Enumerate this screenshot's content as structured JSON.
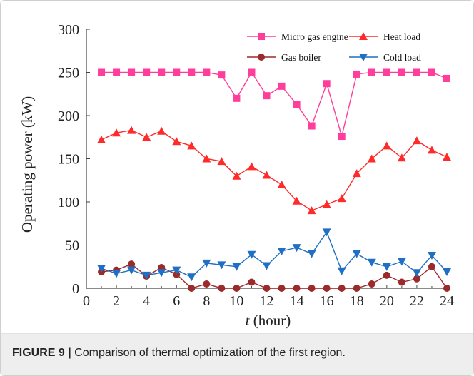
{
  "chart_data": {
    "type": "line",
    "title": "",
    "xlabel_italic": "t",
    "xlabel_rest": " (hour)",
    "ylabel": "Operating power  (kW)",
    "xlim": [
      0,
      24
    ],
    "ylim": [
      0,
      300
    ],
    "xticks": [
      "0",
      "2",
      "4",
      "6",
      "8",
      "10",
      "12",
      "14",
      "16",
      "18",
      "20",
      "22",
      "24"
    ],
    "yticks": [
      "0",
      "50",
      "100",
      "150",
      "200",
      "250",
      "300"
    ],
    "grid": false,
    "legend_position": "top-right",
    "x": [
      1,
      2,
      3,
      4,
      5,
      6,
      7,
      8,
      9,
      10,
      11,
      12,
      13,
      14,
      15,
      16,
      17,
      18,
      19,
      20,
      21,
      22,
      23,
      24
    ],
    "series": [
      {
        "name": "Micro gas engine",
        "color": "#ff3d9a",
        "marker": "square",
        "values": [
          250,
          250,
          250,
          250,
          250,
          250,
          250,
          250,
          247,
          220,
          250,
          223,
          234,
          213,
          188,
          237,
          176,
          248,
          250,
          250,
          250,
          250,
          250,
          243
        ]
      },
      {
        "name": "Heat load",
        "color": "#ff2a2a",
        "marker": "triangle-up",
        "values": [
          172,
          180,
          183,
          175,
          182,
          170,
          165,
          150,
          147,
          130,
          141,
          131,
          120,
          101,
          90,
          97,
          104,
          133,
          150,
          165,
          151,
          171,
          160,
          152
        ]
      },
      {
        "name": "Gas boiler",
        "color": "#9b2a2a",
        "marker": "circle",
        "values": [
          19,
          21,
          28,
          14,
          24,
          16,
          0,
          5,
          0,
          0,
          7,
          0,
          0,
          0,
          0,
          0,
          0,
          0,
          5,
          15,
          7,
          11,
          25,
          0
        ]
      },
      {
        "name": "Cold load",
        "color": "#1f6fc4",
        "marker": "triangle-down",
        "values": [
          23,
          17,
          21,
          15,
          18,
          21,
          13,
          29,
          27,
          25,
          39,
          26,
          43,
          47,
          40,
          65,
          20,
          40,
          30,
          25,
          31,
          18,
          38,
          19
        ]
      }
    ]
  },
  "caption": {
    "label": "FIGURE 9 |",
    "text": " Comparison of thermal optimization of the first region."
  }
}
